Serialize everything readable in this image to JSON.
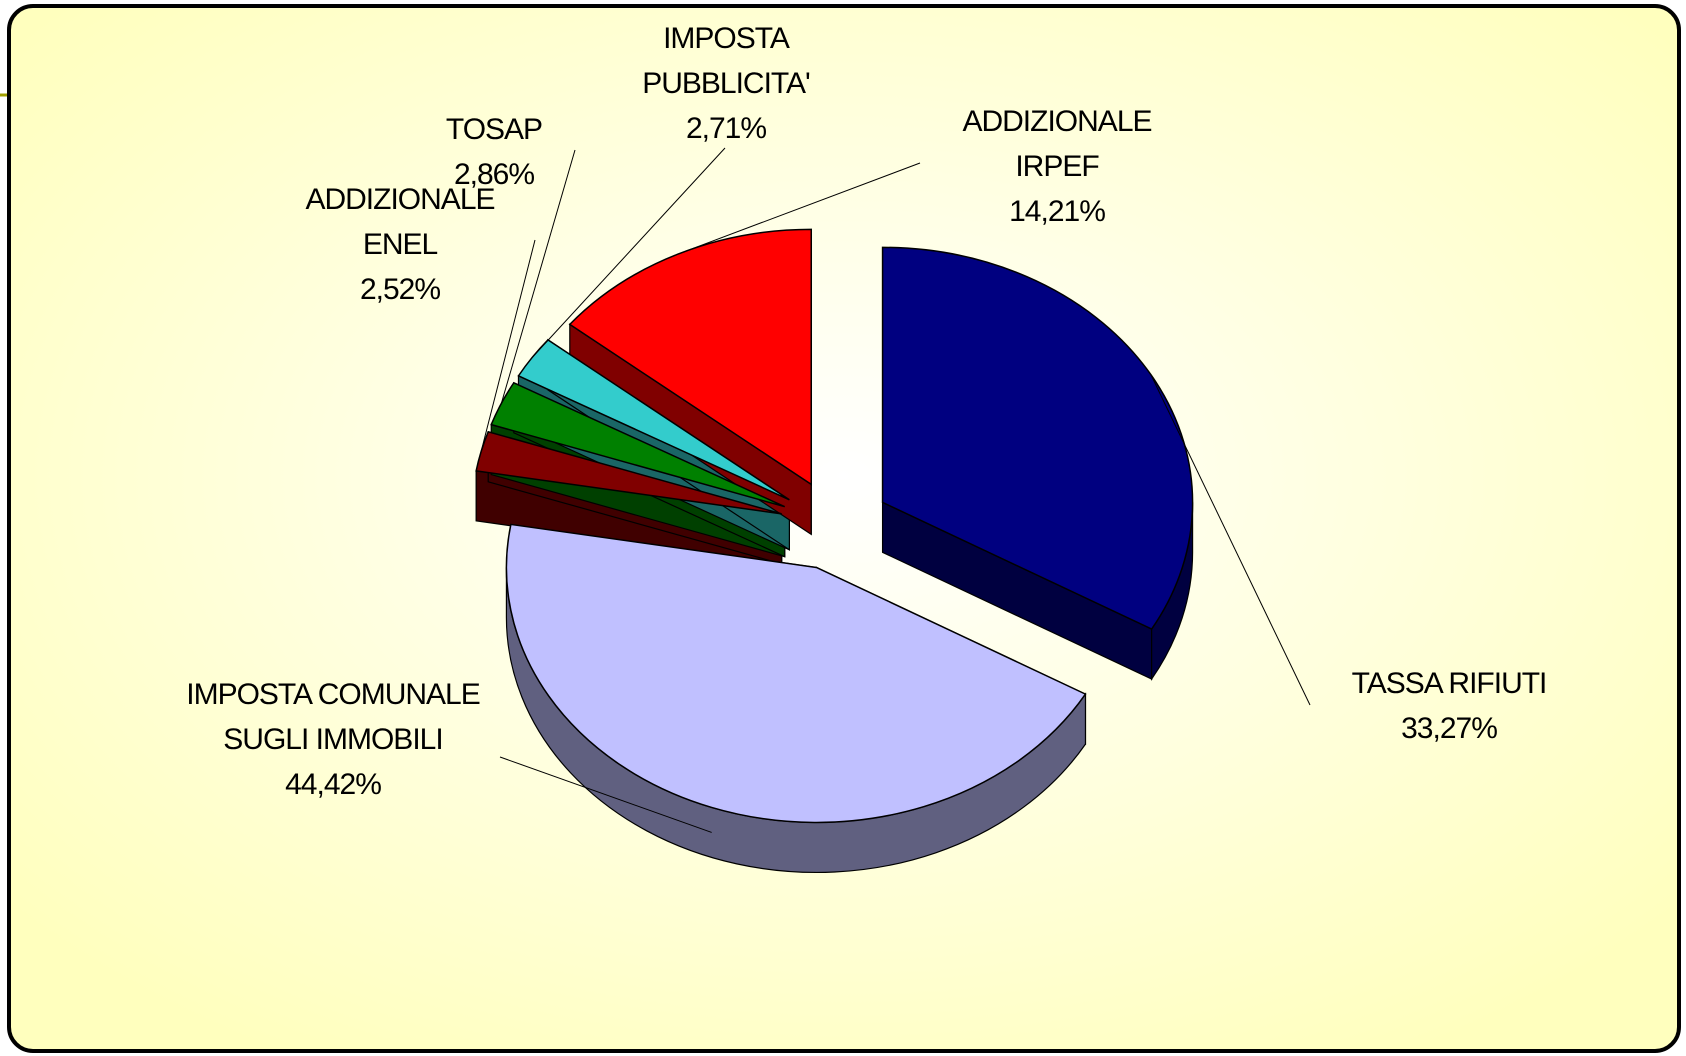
{
  "chart_data": {
    "type": "pie",
    "categories": [
      "TASSA RIFIUTI",
      "IMPOSTA COMUNALE SUGLI IMMOBILI",
      "ADDIZIONALE ENEL",
      "TOSAP",
      "IMPOSTA PUBBLICITA'",
      "ADDIZIONALE IRPEF"
    ],
    "values": [
      33.27,
      44.42,
      2.52,
      2.86,
      2.71,
      14.21
    ],
    "value_labels": [
      "33,27%",
      "44,42%",
      "2,52%",
      "2,86%",
      "2,71%",
      "14,21%"
    ],
    "colors": [
      "#000080",
      "#c0c0ff",
      "#800000",
      "#008000",
      "#33cccc",
      "#ff0000"
    ]
  }
}
